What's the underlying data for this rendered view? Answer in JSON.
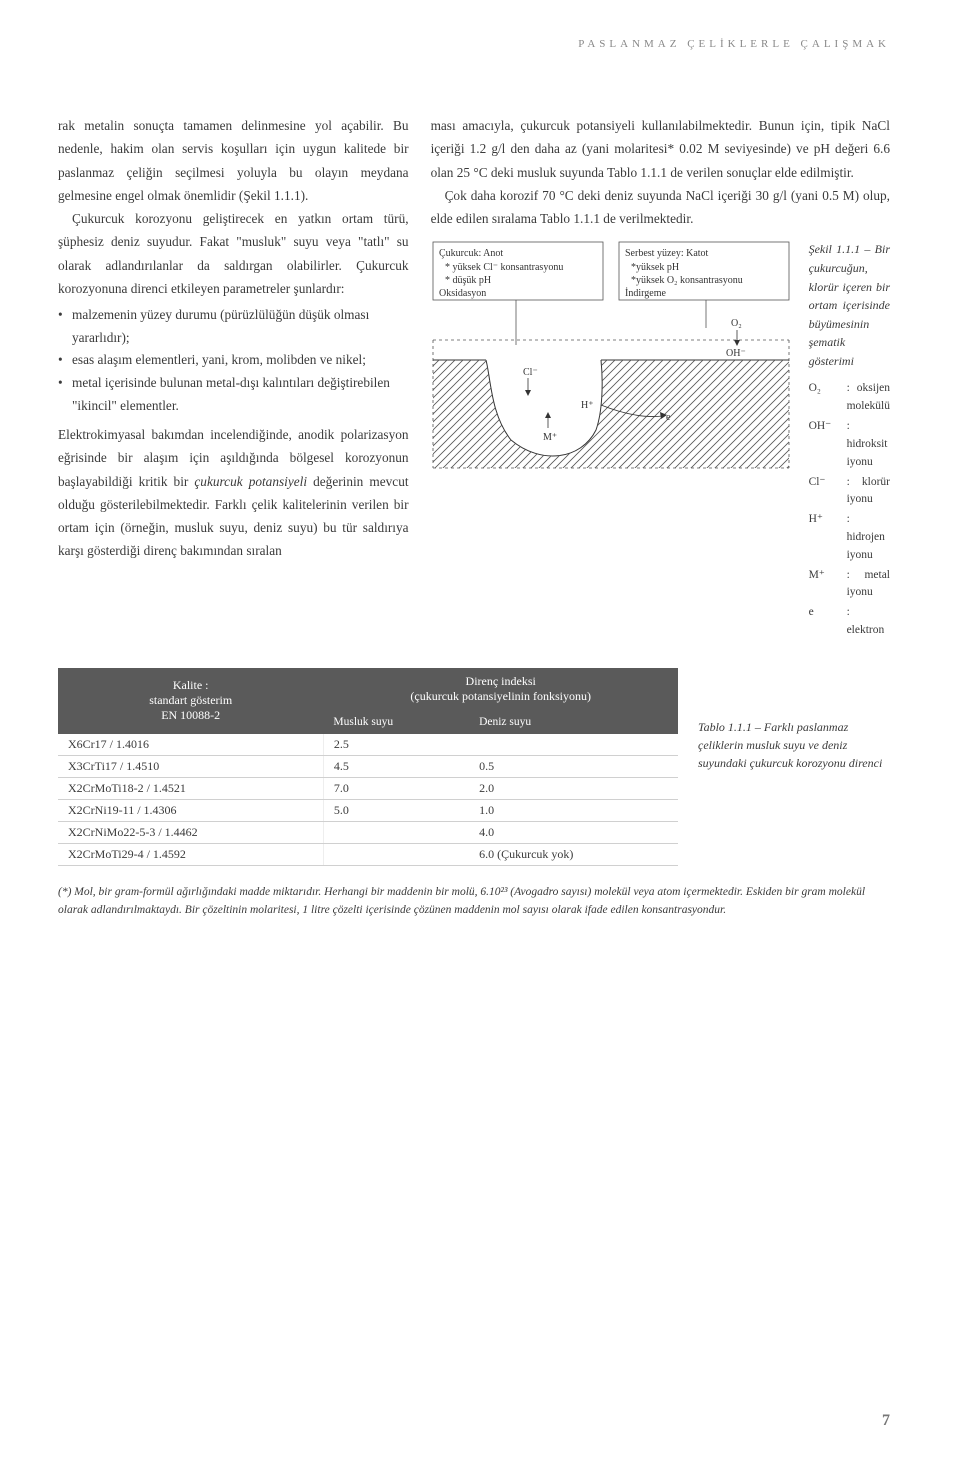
{
  "header": {
    "running": "PASLANMAZ ÇELİKLERLE ÇALIŞMAK"
  },
  "col1": {
    "p1": "rak metalin sonuçta tamamen delinmesine yol açabilir. Bu nedenle, hakim olan servis koşulları için uygun kalitede bir paslanmaz çeliğin seçilmesi yoluyla bu olayın meydana gelmesine engel olmak önemlidir (Şekil 1.1.1).",
    "p2": "Çukurcuk korozyonu geliştirecek en yatkın ortam türü, şüphesiz deniz suyudur. Fakat \"musluk\" suyu veya \"tatlı\" su olarak adlandırılanlar da saldırgan olabilirler. Çukurcuk korozyonuna direnci etkileyen parametreler şunlardır:",
    "li1": "malzemenin yüzey durumu (pürüzlülüğün düşük olması yararlıdır);",
    "li2": "esas alaşım elementleri, yani, krom, molibden ve nikel;",
    "li3": "metal içerisinde bulunan metal-dışı kalıntıları değiştirebilen \"ikincil\" elementler.",
    "p3a": "Elektrokimyasal bakımdan incelendiğinde, anodik polarizasyon eğrisinde bir alaşım için aşıldığında bölgesel korozyonun başlayabildiği kritik bir ",
    "p3i": "çukurcuk potansiyeli",
    "p3b": " değerinin mevcut olduğu gösterilebilmektedir. Farklı çelik kalitelerinin verilen bir ortam için (örneğin, musluk suyu, deniz suyu) bu tür saldırıya karşı gösterdiği direnç bakımından sıralan"
  },
  "col2": {
    "p1": "ması amacıyla, çukurcuk potansiyeli kullanılabilmektedir. Bunun için, tipik NaCl içeriği 1.2 g/l den daha az (yani molaritesi* 0.02 M seviyesinde) ve pH değeri 6.6 olan 25 °C deki musluk suyunda Tablo 1.1.1 de verilen sonuçlar elde edilmiştir.",
    "p2": "Çok daha korozif 70 °C deki deniz suyunda NaCl içeriği 30 g/l (yani 0.5 M) olup, elde edilen sıralama Tablo 1.1.1 de verilmektedir."
  },
  "diagram": {
    "left_title": "Çukurcuk: Anot",
    "left_l1": "* yüksek Cl⁻ konsantrasyonu",
    "left_l2": "* düşük pH",
    "left_l3": "Oksidasyon",
    "right_title": "Serbest yüzey: Katot",
    "right_l1": "*yüksek pH",
    "right_l2": "*yüksek O₂ konsantrasyonu",
    "right_l3": "İndirgeme",
    "cl": "Cl⁻",
    "h": "H⁺",
    "m": "M⁺",
    "o2": "O₂",
    "oh": "OH⁻",
    "e": "e"
  },
  "figcaption": {
    "title": "Şekil 1.1.1 – Bir çukurcuğun, klorür içeren bir ortam içerisinde büyümesinin şematik gösterimi",
    "legend": [
      {
        "sym": "O₂",
        "txt": ": oksijen molekülü"
      },
      {
        "sym": "OH⁻",
        "txt": ": hidroksit iyonu"
      },
      {
        "sym": "Cl⁻",
        "txt": ": klorür iyonu"
      },
      {
        "sym": "H⁺",
        "txt": ": hidrojen iyonu"
      },
      {
        "sym": "M⁺",
        "txt": ": metal iyonu"
      },
      {
        "sym": "e",
        "txt": ": elektron"
      }
    ]
  },
  "table": {
    "head_grade_l1": "Kalite :",
    "head_grade_l2": "standart gösterim",
    "head_grade_l3": "EN 10088-2",
    "head_index_l1": "Direnç indeksi",
    "head_index_l2": "(çukurcuk potansiyelinin fonksiyonu)",
    "sub1": "Musluk suyu",
    "sub2": "Deniz suyu",
    "rows": [
      {
        "g": "X6Cr17 / 1.4016",
        "m": "2.5",
        "d": ""
      },
      {
        "g": "X3CrTi17 / 1.4510",
        "m": "4.5",
        "d": "0.5"
      },
      {
        "g": "X2CrMoTi18-2 / 1.4521",
        "m": "7.0",
        "d": "2.0"
      },
      {
        "g": "X2CrNi19-11 / 1.4306",
        "m": "5.0",
        "d": "1.0"
      },
      {
        "g": "X2CrNiMo22-5-3 / 1.4462",
        "m": "",
        "d": "4.0"
      },
      {
        "g": "X2CrMoTi29-4 / 1.4592",
        "m": "",
        "d": "6.0 (Çukurcuk yok)"
      }
    ],
    "caption": "Tablo 1.1.1 – Farklı paslanmaz çeliklerin musluk suyu ve deniz suyundaki çukurcuk korozyonu direnci"
  },
  "footnote": "(*) Mol, bir gram-formül ağırlığındaki madde miktarıdır. Herhangi bir maddenin bir molü, 6.10²³ (Avogadro sayısı) molekül veya atom içermektedir. Eskiden bir gram molekül olarak adlandırılmaktaydı. Bir çözeltinin molaritesi, 1 litre çözelti içerisinde çözünen maddenin mol sayısı olarak ifade edilen konsantrasyondur.",
  "page": "7"
}
